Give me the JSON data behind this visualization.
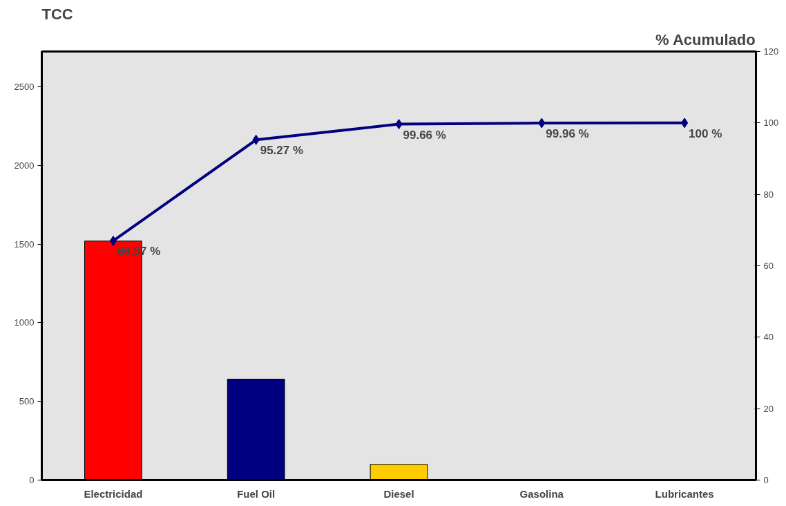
{
  "chart_data": {
    "type": "bar",
    "ylabel": "TCC",
    "y2label": "% Acumulado",
    "categories": [
      "Electricidad",
      "Fuel Oil",
      "Diesel",
      "Gasolina",
      "Lubricantes"
    ],
    "series": [
      {
        "colors": [
          "#ff0000",
          "#000080",
          "#ffcc00",
          "#00ccff",
          "#800080"
        ],
        "values": [
          1520,
          642,
          100,
          null,
          null
        ]
      },
      {
        "type": "line",
        "axis": "y2",
        "color": "#000080",
        "marker": "diamond",
        "values": [
          66.97,
          95.27,
          99.66,
          99.96,
          100
        ],
        "value_labels": [
          "66.97 %",
          "95.27 %",
          "99.66 %",
          "99.96 %",
          "100 %"
        ]
      }
    ],
    "ylim": [
      0,
      2725
    ],
    "yticks": [
      0,
      500,
      1000,
      1500,
      2000,
      2500
    ],
    "y2lim": [
      0,
      120
    ],
    "y2ticks": [
      0,
      20,
      40,
      60,
      80,
      100,
      120
    ],
    "grid": false
  }
}
